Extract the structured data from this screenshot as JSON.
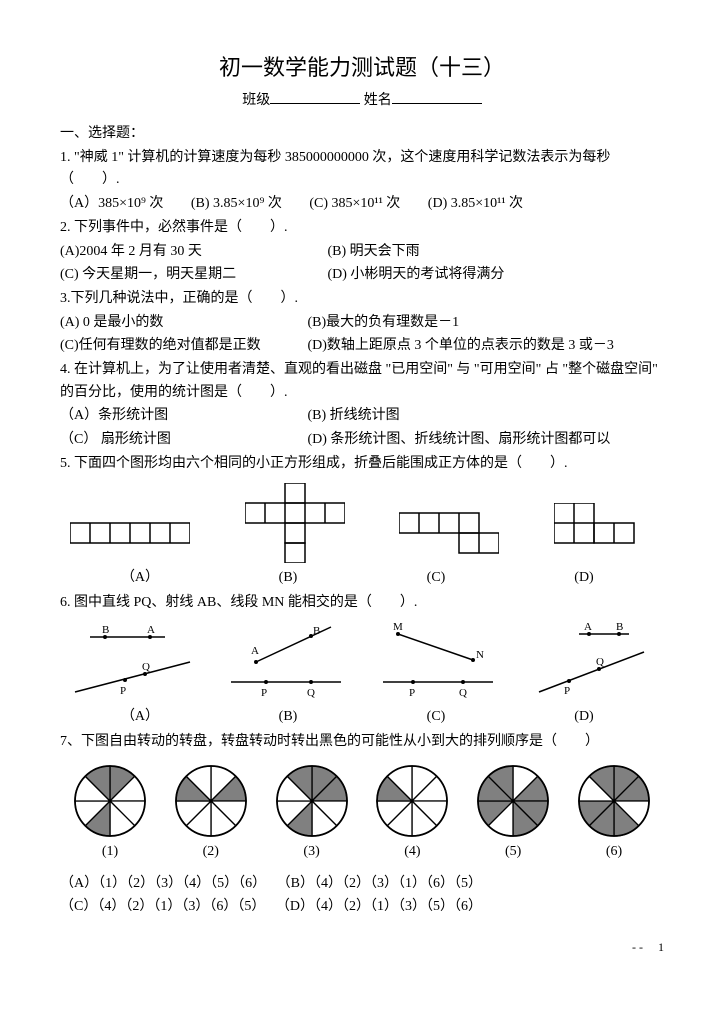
{
  "title": "初一数学能力测试题（十三）",
  "subtitle_class": "班级",
  "subtitle_name": "姓名",
  "section1": "一、选择题：",
  "q1": "1. \"神威 1\" 计算机的计算速度为每秒 385000000000 次，这个速度用科学记数法表示为每秒（　　）.",
  "q1a": "（A）385×10⁹ 次",
  "q1b": "(B) 3.85×10⁹ 次",
  "q1c": "(C) 385×10¹¹ 次",
  "q1d": "(D) 3.85×10¹¹ 次",
  "q2": "2.  下列事件中，必然事件是（　　）.",
  "q2a": "(A)2004 年 2 月有 30 天",
  "q2b": "(B)  明天会下雨",
  "q2c": "(C)  今天星期一，明天星期二",
  "q2d": "(D)  小彬明天的考试将得满分",
  "q3": "3.下列几种说法中，正确的是（　　）.",
  "q3a": "(A) 0 是最小的数",
  "q3b": "(B)最大的负有理数是－1",
  "q3c": "(C)任何有理数的绝对值都是正数",
  "q3d": "(D)数轴上距原点 3 个单位的点表示的数是 3 或－3",
  "q4": "4.  在计算机上，为了让使用者清楚、直观的看出磁盘 \"已用空间\" 与 \"可用空间\" 占 \"整个磁盘空间\" 的百分比，使用的统计图是（　　）.",
  "q4a": "（A）条形统计图",
  "q4b": "(B)  折线统计图",
  "q4c": "（C） 扇形统计图",
  "q4d": "(D)  条形统计图、折线统计图、扇形统计图都可以",
  "q5": "5.  下面四个图形均由六个相同的小正方形组成，折叠后能围成正方体的是（　　）.",
  "labA": "（A）",
  "labB": "(B)",
  "labC": "(C)",
  "labD": "(D)",
  "q6": " 6.  图中直线 PQ、射线 AB、线段 MN 能相交的是（　　）.",
  "q7": "7、下图自由转动的转盘，转盘转动时转出黑色的可能性从小到大的排列顺序是（　　）",
  "sp1": "(1)",
  "sp2": "(2)",
  "sp3": "(3)",
  "sp4": "(4)",
  "sp5": "(5)",
  "sp6": "(6)",
  "q7a": "（A）（1）（2）（3）（4）（5）（6）",
  "q7b": "（B）（4）（2）（3）（1）（6）（5）",
  "q7c": "（C）（4）（2）（1）（3）（6）（5）",
  "q7d": "（D）（4）（2）（1）（3）（5）（6）",
  "pagenum": "1",
  "dash": "-  -",
  "fig6": {
    "a": {
      "P": "P",
      "Q": "Q",
      "A": "A",
      "B": "B"
    },
    "b": {
      "P": "P",
      "Q": "Q",
      "A": "A",
      "B": "B"
    },
    "c": {
      "P": "P",
      "Q": "Q",
      "M": "M",
      "N": "N"
    },
    "d": {
      "P": "P",
      "Q": "Q",
      "A": "A",
      "B": "B"
    }
  },
  "shade": "#808080",
  "spinners": [
    {
      "slices": [
        true,
        false,
        false,
        false,
        true,
        false,
        false,
        true
      ]
    },
    {
      "slices": [
        false,
        true,
        false,
        false,
        false,
        false,
        true,
        false
      ]
    },
    {
      "slices": [
        true,
        true,
        false,
        false,
        true,
        false,
        false,
        true
      ]
    },
    {
      "slices": [
        false,
        false,
        false,
        false,
        false,
        false,
        true,
        false
      ]
    },
    {
      "slices": [
        false,
        true,
        true,
        true,
        false,
        true,
        true,
        true
      ]
    },
    {
      "slices": [
        true,
        true,
        false,
        true,
        true,
        true,
        false,
        true
      ]
    }
  ]
}
